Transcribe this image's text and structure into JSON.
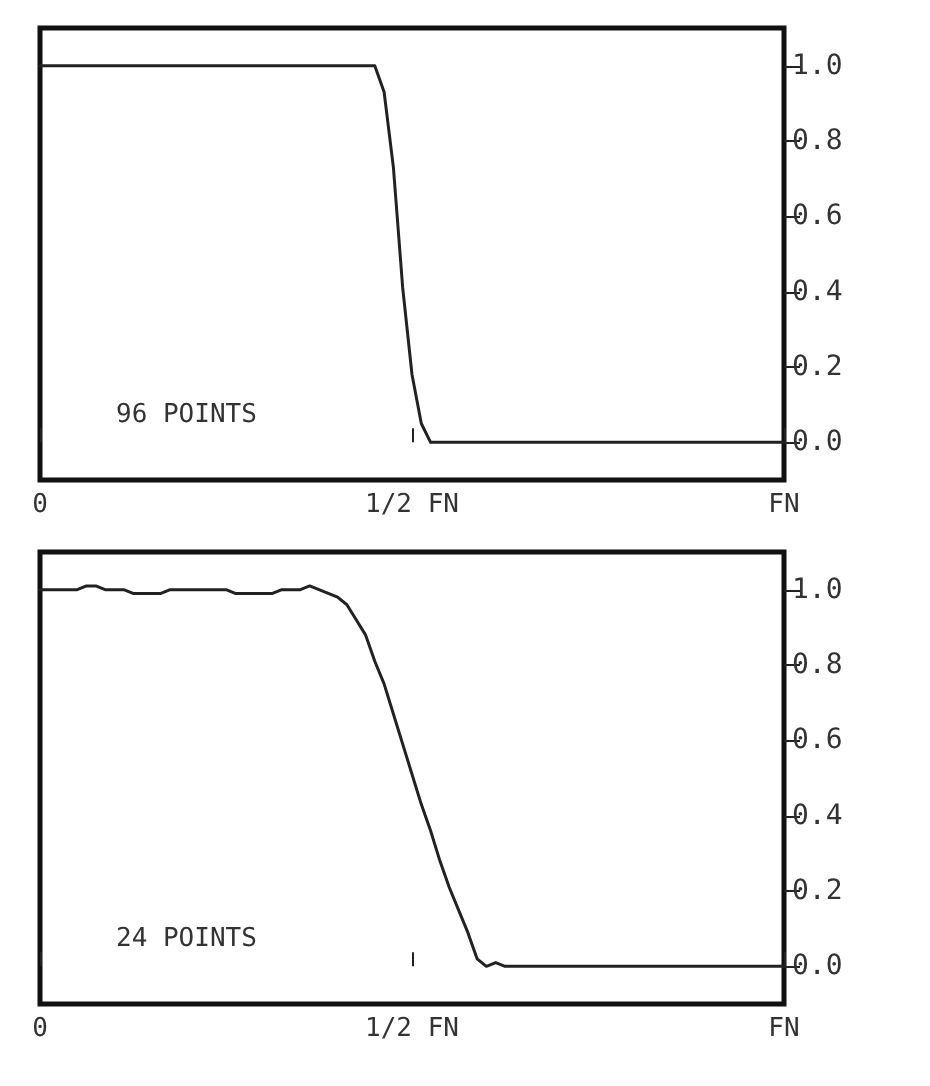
{
  "chart_data": [
    {
      "type": "line",
      "annotations": [
        "96 POINTS"
      ],
      "categories": [
        "0",
        null,
        null,
        null,
        null,
        null,
        null,
        null,
        null,
        null,
        null,
        null,
        null,
        null,
        null,
        null,
        null,
        null,
        null,
        null,
        null,
        null,
        null,
        null,
        null,
        null,
        null,
        null,
        null,
        null,
        null,
        null,
        null,
        null,
        null,
        null,
        null,
        null,
        null,
        null,
        "1/2 FN",
        null,
        null,
        null,
        null,
        null,
        null,
        null,
        null,
        null,
        null,
        null,
        null,
        null,
        null,
        null,
        null,
        null,
        null,
        null,
        null,
        null,
        null,
        null,
        null,
        null,
        null,
        null,
        null,
        null,
        null,
        null,
        null,
        null,
        null,
        null,
        null,
        null,
        null,
        null,
        "FN"
      ],
      "ylim": [
        -0.1,
        1.1
      ],
      "yticks": [
        {
          "value": 0,
          "label": "0.0"
        },
        {
          "value": 0.2,
          "label": "0.2"
        },
        {
          "value": 0.4,
          "label": "0.4"
        },
        {
          "value": 0.6,
          "label": "0.6"
        },
        {
          "value": 0.8,
          "label": "0.8"
        },
        {
          "value": 1,
          "label": "1.0"
        }
      ],
      "marker": "none",
      "line_style": "solid",
      "series": [
        {
          "color": "#222222",
          "values": [
            1.0,
            1.0,
            1.0,
            1.0,
            1.0,
            1.0,
            1.0,
            1.0,
            1.0,
            1.0,
            1.0,
            1.0,
            1.0,
            1.0,
            1.0,
            1.0,
            1.0,
            1.0,
            1.0,
            1.0,
            1.0,
            1.0,
            1.0,
            1.0,
            1.0,
            1.0,
            1.0,
            1.0,
            1.0,
            1.0,
            1.0,
            1.0,
            1.0,
            1.0,
            1.0,
            1.0,
            1.0,
            0.93,
            0.73,
            0.41,
            0.18,
            0.05,
            0.0,
            0.0,
            0.0,
            0.0,
            0.0,
            0.0,
            0.0,
            0.0,
            0.0,
            0.0,
            0.0,
            0.0,
            0.0,
            0.0,
            0.0,
            0.0,
            0.0,
            0.0,
            0.0,
            0.0,
            0.0,
            0.0,
            0.0,
            0.0,
            0.0,
            0.0,
            0.0,
            0.0,
            0.0,
            0.0,
            0.0,
            0.0,
            0.0,
            0.0,
            0.0,
            0.0,
            0.0,
            0.0,
            0.0
          ]
        }
      ]
    },
    {
      "type": "line",
      "annotations": [
        "24 POINTS"
      ],
      "categories": [
        "0",
        null,
        null,
        null,
        null,
        null,
        null,
        null,
        null,
        null,
        null,
        null,
        null,
        null,
        null,
        null,
        null,
        null,
        null,
        null,
        null,
        null,
        null,
        null,
        null,
        null,
        null,
        null,
        null,
        null,
        null,
        null,
        null,
        null,
        null,
        null,
        null,
        null,
        null,
        null,
        "1/2 FN",
        null,
        null,
        null,
        null,
        null,
        null,
        null,
        null,
        null,
        null,
        null,
        null,
        null,
        null,
        null,
        null,
        null,
        null,
        null,
        null,
        null,
        null,
        null,
        null,
        null,
        null,
        null,
        null,
        null,
        null,
        null,
        null,
        null,
        null,
        null,
        null,
        null,
        null,
        null,
        "FN"
      ],
      "ylim": [
        -0.1,
        1.1
      ],
      "yticks": [
        {
          "value": 0,
          "label": "0.0"
        },
        {
          "value": 0.2,
          "label": "0.2"
        },
        {
          "value": 0.4,
          "label": "0.4"
        },
        {
          "value": 0.6,
          "label": "0.6"
        },
        {
          "value": 0.8,
          "label": "0.8"
        },
        {
          "value": 1,
          "label": "1.0"
        }
      ],
      "marker": "none",
      "line_style": "solid",
      "series": [
        {
          "color": "#222222",
          "values": [
            1.0,
            1.0,
            1.0,
            1.0,
            1.0,
            1.01,
            1.01,
            1.0,
            1.0,
            1.0,
            0.99,
            0.99,
            0.99,
            0.99,
            1.0,
            1.0,
            1.0,
            1.0,
            1.0,
            1.0,
            1.0,
            0.99,
            0.99,
            0.99,
            0.99,
            0.99,
            1.0,
            1.0,
            1.0,
            1.01,
            1.0,
            0.99,
            0.98,
            0.96,
            0.92,
            0.88,
            0.81,
            0.75,
            0.67,
            0.59,
            0.51,
            0.43,
            0.36,
            0.28,
            0.21,
            0.15,
            0.09,
            0.02,
            0.0,
            0.01,
            0.0,
            0.0,
            0.0,
            0.0,
            0.0,
            0.0,
            0.0,
            0.0,
            0.0,
            0.0,
            0.0,
            0.0,
            0.0,
            0.0,
            0.0,
            0.0,
            0.0,
            0.0,
            0.0,
            0.0,
            0.0,
            0.0,
            0.0,
            0.0,
            0.0,
            0.0,
            0.0,
            0.0,
            0.0,
            0.0,
            0.0
          ]
        }
      ]
    }
  ]
}
